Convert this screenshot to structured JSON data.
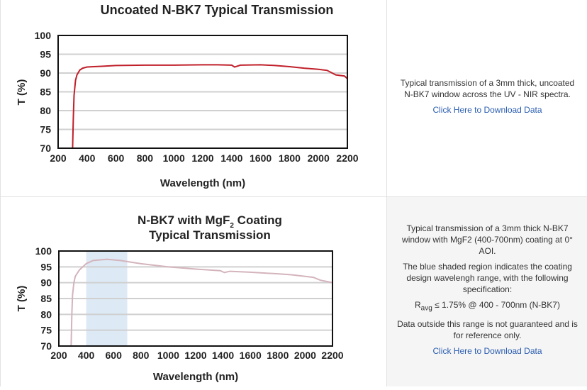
{
  "panels": [
    {
      "description": [
        "Typical transmission of a 3mm thick, uncoated N-BK7 window across the UV - NIR spectra."
      ],
      "spec": null,
      "link": "Click Here to Download Data"
    },
    {
      "description": [
        "Typical transmission of a 3mm thick N-BK7 window with MgF2 (400-700nm) coating at 0° AOI.",
        "The blue shaded region indicates the coating design wavelengh range, with the following specification:"
      ],
      "spec": {
        "r": "R",
        "sub": "avg",
        "rest": " ≤ 1.75% @ 400 - 700nm (N-BK7)"
      },
      "note": "Data outside this range is not guaranteed and is for reference only.",
      "link": "Click Here to Download Data"
    }
  ],
  "chart_data": [
    {
      "type": "line",
      "title": "Uncoated N-BK7 Typical Transmission",
      "title2": "",
      "xlabel": "Wavelength (nm)",
      "ylabel": "T (%)",
      "xlim": [
        200,
        2200
      ],
      "ylim": [
        70,
        100
      ],
      "grid": true,
      "color": "#c0202a",
      "xticks": [
        "200",
        "400",
        "600",
        "800",
        "1000",
        "1200",
        "1400",
        "1600",
        "1800",
        "2000",
        "2200"
      ],
      "yticks": [
        "70",
        "75",
        "80",
        "85",
        "90",
        "95",
        "100"
      ],
      "x": [
        300,
        305,
        310,
        320,
        330,
        350,
        370,
        400,
        500,
        600,
        800,
        1000,
        1200,
        1300,
        1400,
        1420,
        1460,
        1600,
        1700,
        1800,
        1900,
        2000,
        2060,
        2120,
        2180,
        2200
      ],
      "y": [
        70,
        78,
        84,
        88,
        89.5,
        90.8,
        91.3,
        91.6,
        91.8,
        92,
        92.1,
        92.1,
        92.2,
        92.2,
        92.1,
        91.6,
        92.1,
        92.2,
        92,
        91.7,
        91.3,
        91,
        90.7,
        89.5,
        89.2,
        88.5
      ]
    },
    {
      "type": "line",
      "title": "N-BK7 with MgF",
      "title_sub": "2",
      "title_rest": " Coating",
      "title2": "Typical Transmission",
      "xlabel": "Wavelength (nm)",
      "ylabel": "T (%)",
      "xlim": [
        200,
        2200
      ],
      "ylim": [
        70,
        100
      ],
      "grid": true,
      "color": "#d4b4bc",
      "shade": [
        400,
        700
      ],
      "shade_color": "#dde9f5",
      "xticks": [
        "200",
        "400",
        "600",
        "800",
        "1000",
        "1200",
        "1400",
        "1600",
        "1800",
        "2000",
        "2200"
      ],
      "yticks": [
        "70",
        "75",
        "80",
        "85",
        "90",
        "95",
        "100"
      ],
      "x": [
        290,
        295,
        300,
        310,
        320,
        350,
        400,
        450,
        550,
        650,
        800,
        1000,
        1200,
        1380,
        1410,
        1450,
        1600,
        1800,
        1900,
        2000,
        2060,
        2110,
        2200
      ],
      "y": [
        70,
        80,
        86,
        90,
        92,
        94,
        96,
        97,
        97.4,
        97,
        96,
        95,
        94.3,
        93.8,
        93.2,
        93.6,
        93.3,
        92.8,
        92.5,
        92,
        91.7,
        90.8,
        90
      ]
    }
  ]
}
